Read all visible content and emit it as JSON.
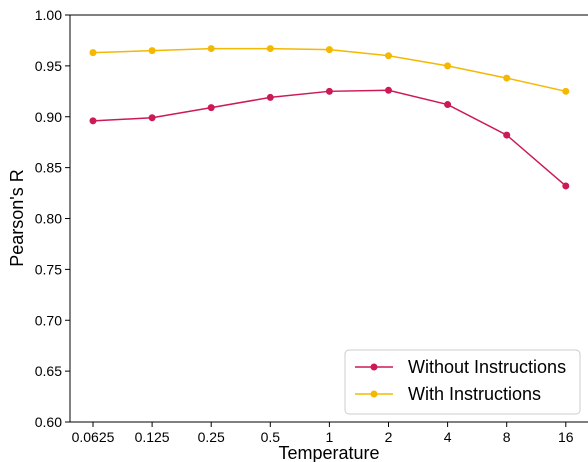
{
  "chart_data": {
    "type": "line",
    "x": [
      "0.0625",
      "0.125",
      "0.25",
      "0.5",
      "1",
      "2",
      "4",
      "8",
      "16"
    ],
    "series": [
      {
        "name": "Without Instructions",
        "color": "#cc1a57",
        "values": [
          0.896,
          0.899,
          0.909,
          0.919,
          0.925,
          0.926,
          0.912,
          0.882,
          0.832
        ]
      },
      {
        "name": "With Instructions",
        "color": "#f5b800",
        "values": [
          0.963,
          0.965,
          0.967,
          0.967,
          0.966,
          0.96,
          0.95,
          0.938,
          0.925
        ]
      }
    ],
    "xlabel": "Temperature",
    "ylabel": "Pearson's R",
    "ylim": [
      0.6,
      1.0
    ],
    "yticks": [
      "0.60",
      "0.65",
      "0.70",
      "0.75",
      "0.80",
      "0.85",
      "0.90",
      "0.95",
      "1.00"
    ],
    "x_scale": "log2",
    "grid": false,
    "legend_position": "lower-right"
  }
}
